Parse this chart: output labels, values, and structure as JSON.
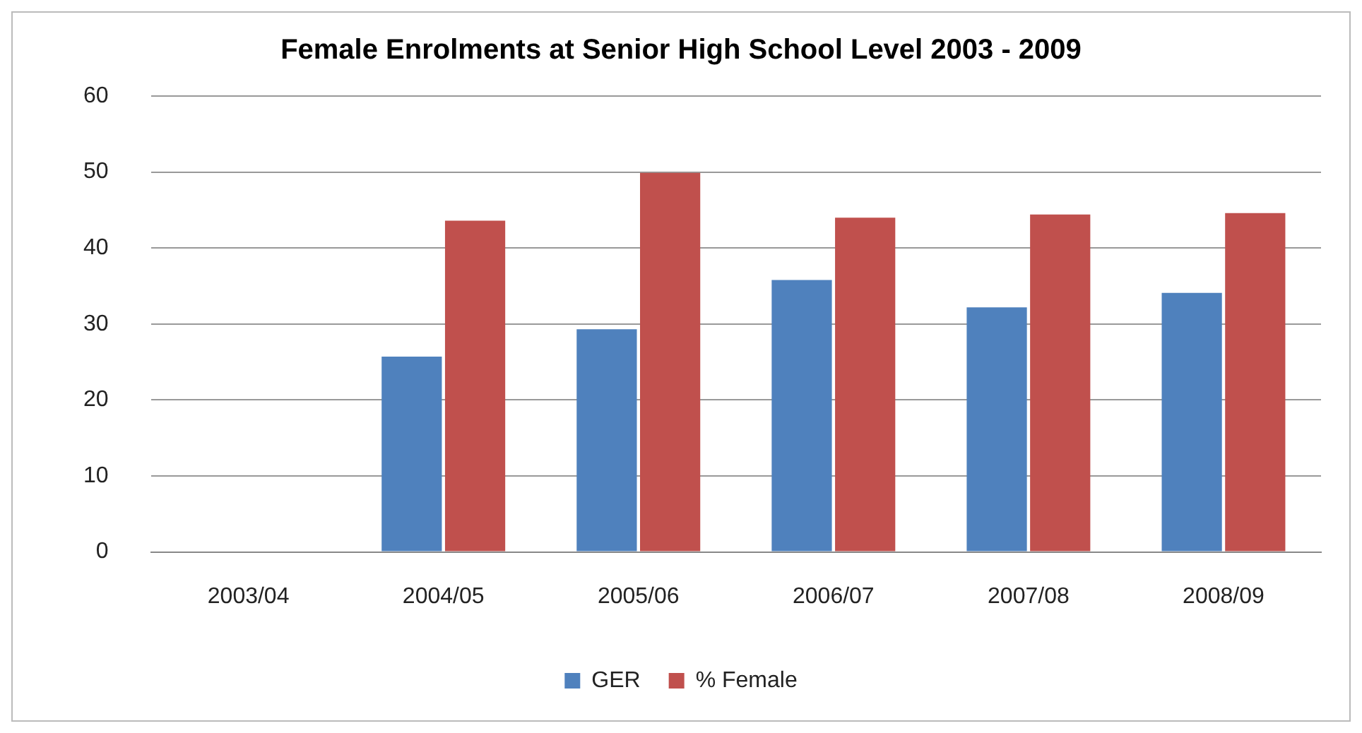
{
  "chart_data": {
    "type": "bar",
    "title": "Female Enrolments at Senior High School Level 2003 - 2009",
    "categories": [
      "2003/04",
      "2004/05",
      "2005/06",
      "2006/07",
      "2007/08",
      "2008/09"
    ],
    "series": [
      {
        "name": "GER",
        "color": "#4f81bd",
        "values": [
          null,
          25.7,
          29.3,
          35.8,
          32.2,
          34.1
        ]
      },
      {
        "name": "% Female",
        "color": "#c0504d",
        "values": [
          null,
          43.6,
          49.9,
          44.0,
          44.4,
          44.6
        ]
      }
    ],
    "ylim": [
      0,
      60
    ],
    "yticks": [
      0,
      10,
      20,
      30,
      40,
      50,
      60
    ],
    "grid": "y",
    "legend": "bottom"
  }
}
